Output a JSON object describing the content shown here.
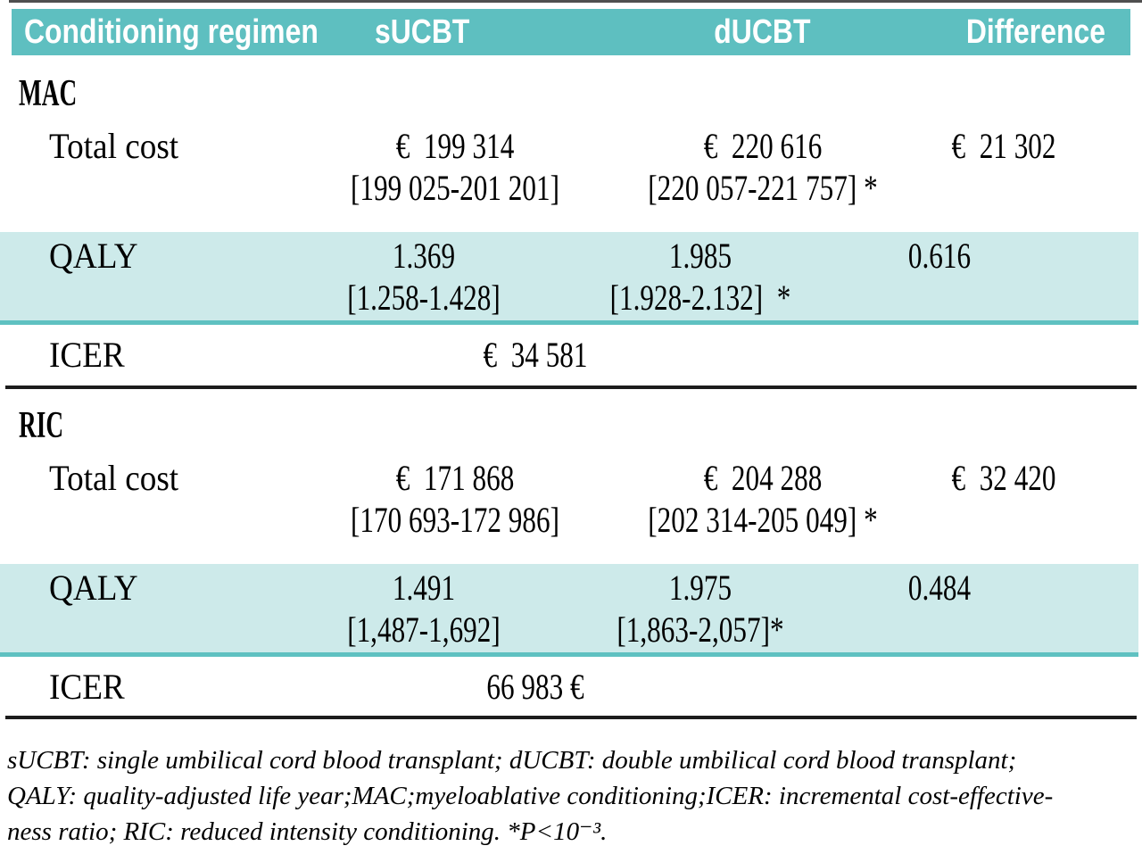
{
  "header": {
    "regimen": "Conditioning regimen",
    "sucbt": "sUCBT",
    "ducbt": "dUCBT",
    "difference": "Difference"
  },
  "mac": {
    "label": "MAC",
    "total_cost": {
      "label": "Total cost",
      "sucbt": "€  199 314",
      "sucbt_ci": "[199 025-201 201]",
      "ducbt": "€  220 616",
      "ducbt_ci": "[220 057-221 757] *",
      "difference": "€  21 302"
    },
    "qaly": {
      "label": "QALY",
      "sucbt": "1.369",
      "sucbt_ci": "[1.258-1.428]",
      "ducbt": "1.985",
      "ducbt_ci": "[1.928-2.132]  *",
      "difference": "0.616"
    },
    "icer": {
      "label": "ICER",
      "value": "€  34 581"
    }
  },
  "ric": {
    "label": "RIC",
    "total_cost": {
      "label": "Total cost",
      "sucbt": "€  171 868",
      "sucbt_ci": "[170 693-172 986]",
      "ducbt": "€  204 288",
      "ducbt_ci": "[202 314-205 049] *",
      "difference": "€  32 420"
    },
    "qaly": {
      "label": "QALY",
      "sucbt": "1.491",
      "sucbt_ci": "[1,487-1,692]",
      "ducbt": "1.975",
      "ducbt_ci": "[1,863-2,057]*",
      "difference": "0.484"
    },
    "icer": {
      "label": "ICER",
      "value": "66 983 €"
    }
  },
  "footnote": {
    "lines": [
      "sUCBT: single umbilical cord blood transplant; dUCBT: double umbilical cord blood transplant;",
      "QALY: quality-adjusted life year;MAC;myeloablative conditioning;ICER: incremental cost-effective-",
      "ness ratio; RIC: reduced intensity conditioning. *P<10⁻³."
    ]
  },
  "colors": {
    "header_bg": "#5ebfc0",
    "header_text": "#ffffff",
    "highlight_bg": "#cdeaea",
    "highlight_border": "#5fc1c1",
    "divider": "#1c1c1c",
    "text": "#000000"
  }
}
